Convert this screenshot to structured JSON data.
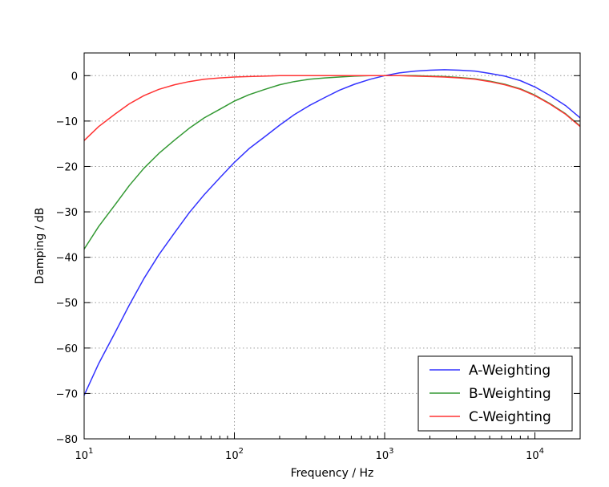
{
  "chart_data": {
    "type": "line",
    "title": "",
    "xlabel": "Frequency / Hz",
    "ylabel": "Damping / dB",
    "xscale": "log",
    "xlim": [
      10,
      20000
    ],
    "ylim": [
      -80,
      5
    ],
    "grid": true,
    "legend_position": "bottom-right",
    "x_ticks": [
      {
        "value": 10,
        "base": "10",
        "exp": "1"
      },
      {
        "value": 100,
        "base": "10",
        "exp": "2"
      },
      {
        "value": 1000,
        "base": "10",
        "exp": "3"
      },
      {
        "value": 10000,
        "base": "10",
        "exp": "4"
      }
    ],
    "y_ticks": [
      {
        "value": 0,
        "label": "0"
      },
      {
        "value": -10,
        "label": "−10"
      },
      {
        "value": -20,
        "label": "−20"
      },
      {
        "value": -30,
        "label": "−30"
      },
      {
        "value": -40,
        "label": "−40"
      },
      {
        "value": -50,
        "label": "−50"
      },
      {
        "value": -60,
        "label": "−60"
      },
      {
        "value": -70,
        "label": "−70"
      },
      {
        "value": -80,
        "label": "−80"
      }
    ],
    "x": [
      10,
      12.5,
      16,
      20,
      25,
      31.5,
      40,
      50,
      63,
      80,
      100,
      125,
      160,
      200,
      250,
      315,
      400,
      500,
      630,
      800,
      1000,
      1250,
      1600,
      2000,
      2500,
      3150,
      4000,
      5000,
      6300,
      8000,
      10000,
      12500,
      16000,
      20000
    ],
    "series": [
      {
        "name": "A-Weighting",
        "color": "#3333ff",
        "values": [
          -70.4,
          -63.4,
          -56.7,
          -50.5,
          -44.7,
          -39.4,
          -34.6,
          -30.2,
          -26.2,
          -22.5,
          -19.1,
          -16.1,
          -13.4,
          -10.9,
          -8.6,
          -6.6,
          -4.8,
          -3.2,
          -1.9,
          -0.8,
          0.0,
          0.6,
          1.0,
          1.2,
          1.3,
          1.2,
          1.0,
          0.5,
          -0.1,
          -1.1,
          -2.5,
          -4.3,
          -6.6,
          -9.3
        ]
      },
      {
        "name": "B-Weighting",
        "color": "#339933",
        "values": [
          -38.2,
          -33.2,
          -28.5,
          -24.2,
          -20.4,
          -17.1,
          -14.2,
          -11.6,
          -9.3,
          -7.4,
          -5.6,
          -4.2,
          -3.0,
          -2.0,
          -1.3,
          -0.8,
          -0.5,
          -0.3,
          -0.1,
          0.0,
          0.0,
          0.0,
          0.0,
          -0.1,
          -0.2,
          -0.4,
          -0.7,
          -1.2,
          -1.9,
          -2.9,
          -4.3,
          -6.1,
          -8.4,
          -11.1
        ]
      },
      {
        "name": "C-Weighting",
        "color": "#ff3333",
        "values": [
          -14.3,
          -11.2,
          -8.5,
          -6.2,
          -4.4,
          -3.0,
          -2.0,
          -1.3,
          -0.8,
          -0.5,
          -0.3,
          -0.2,
          -0.1,
          0.0,
          0.0,
          0.0,
          0.0,
          0.0,
          0.0,
          0.0,
          0.0,
          0.0,
          -0.1,
          -0.2,
          -0.3,
          -0.5,
          -0.8,
          -1.3,
          -2.0,
          -3.0,
          -4.4,
          -6.2,
          -8.5,
          -11.2
        ]
      }
    ]
  }
}
